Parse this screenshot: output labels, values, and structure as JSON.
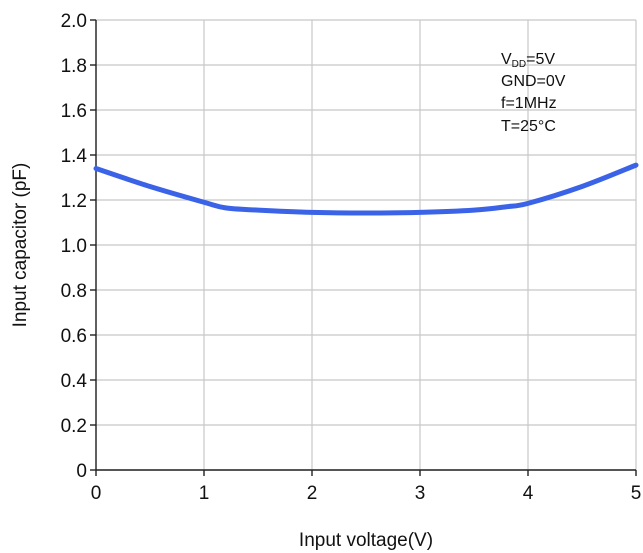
{
  "chart_data": {
    "type": "line",
    "title": "",
    "xlabel": "Input voltage(V)",
    "ylabel": "Input capacitor (pF)",
    "xlim": [
      0,
      5
    ],
    "ylim": [
      0,
      2.0
    ],
    "x_ticks": [
      "0",
      "1",
      "2",
      "3",
      "4",
      "5"
    ],
    "y_ticks": [
      "0",
      "0.2",
      "0.4",
      "0.6",
      "0.8",
      "1.0",
      "1.2",
      "1.4",
      "1.6",
      "1.8",
      "2.0"
    ],
    "grid": true,
    "legend": "none",
    "series": [
      {
        "color": "#3b63e8",
        "x": [
          0,
          0.5,
          1.0,
          1.2,
          1.5,
          2.0,
          2.5,
          3.0,
          3.5,
          3.8,
          4.0,
          4.5,
          5.0
        ],
        "y": [
          1.34,
          1.26,
          1.19,
          1.165,
          1.155,
          1.145,
          1.142,
          1.145,
          1.155,
          1.17,
          1.185,
          1.26,
          1.355
        ]
      }
    ],
    "annotations": {
      "vdd_main": "V",
      "vdd_sub": "DD",
      "vdd_rest": "=5V",
      "gnd": "GND=0V",
      "freq": "f=1MHz",
      "temp": "T=25°C"
    }
  }
}
